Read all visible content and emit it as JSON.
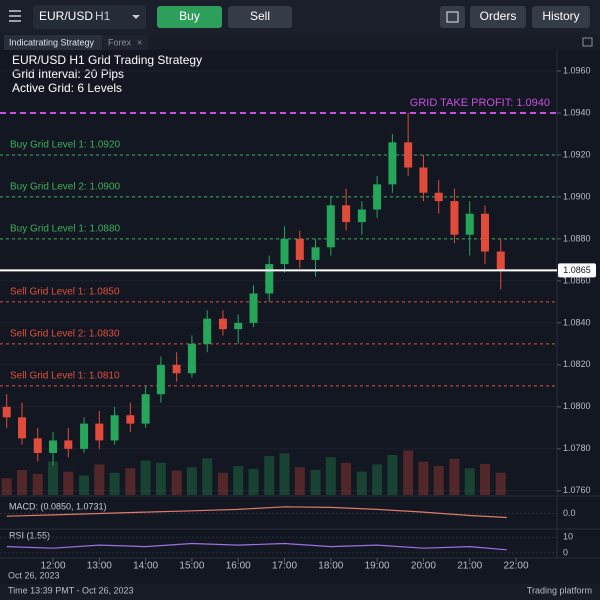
{
  "toolbar": {
    "symbol": "EUR/USD",
    "timeframe": "H1",
    "buy": "Buy",
    "sell": "Sell",
    "orders": "Orders",
    "history": "History"
  },
  "tabs": [
    "Indicatrating Strategy",
    "Forex"
  ],
  "chart": {
    "type": "candlestick",
    "info": [
      "EUR/USD  H1 Grid Trading Strategy",
      "Grid Interval: 20 Pips",
      "Active Grid: 6 Levels"
    ],
    "x": [
      11.0,
      11.33,
      11.67,
      12.0,
      12.33,
      12.67,
      13.0,
      13.33,
      13.67,
      14.0,
      14.33,
      14.67,
      15.0,
      15.33,
      15.67,
      16.0,
      16.33,
      16.67,
      17.0,
      17.33,
      17.67,
      18.0,
      18.33,
      18.67,
      19.0,
      19.33,
      19.67,
      20.0,
      20.33,
      20.67,
      21.0,
      21.33,
      21.67
    ],
    "open": [
      1.08,
      1.0795,
      1.0785,
      1.0778,
      1.0784,
      1.078,
      1.0792,
      1.0784,
      1.0796,
      1.0792,
      1.0806,
      1.082,
      1.0816,
      1.083,
      1.0842,
      1.0837,
      1.084,
      1.0854,
      1.0868,
      1.088,
      1.087,
      1.0876,
      1.0896,
      1.0888,
      1.0894,
      1.0906,
      1.0926,
      1.0914,
      1.0902,
      1.0898,
      1.0882,
      1.0892,
      1.0874
    ],
    "high": [
      1.0806,
      1.0802,
      1.079,
      1.0788,
      1.079,
      1.0795,
      1.0798,
      1.08,
      1.0802,
      1.081,
      1.0824,
      1.0826,
      1.0834,
      1.0846,
      1.0846,
      1.0844,
      1.0858,
      1.0872,
      1.0886,
      1.0884,
      1.088,
      1.09,
      1.0904,
      1.0898,
      1.091,
      1.093,
      1.094,
      1.092,
      1.0908,
      1.0904,
      1.0898,
      1.0896,
      1.088
    ],
    "low": [
      1.079,
      1.0782,
      1.0774,
      1.0772,
      1.0776,
      1.0778,
      1.078,
      1.0782,
      1.0788,
      1.079,
      1.0802,
      1.0812,
      1.0814,
      1.0826,
      1.0834,
      1.083,
      1.0838,
      1.085,
      1.0864,
      1.0866,
      1.0862,
      1.0872,
      1.0884,
      1.0882,
      1.089,
      1.0902,
      1.091,
      1.0898,
      1.0892,
      1.0878,
      1.0872,
      1.0868,
      1.0856
    ],
    "close": [
      1.0795,
      1.0785,
      1.0778,
      1.0784,
      1.078,
      1.0792,
      1.0784,
      1.0796,
      1.0792,
      1.0806,
      1.082,
      1.0816,
      1.083,
      1.0842,
      1.0837,
      1.084,
      1.0854,
      1.0868,
      1.088,
      1.087,
      1.0876,
      1.0896,
      1.0888,
      1.0894,
      1.0906,
      1.0926,
      1.0914,
      1.0902,
      1.0898,
      1.0882,
      1.0892,
      1.0874,
      1.0865
    ],
    "volume": [
      30,
      45,
      38,
      60,
      42,
      35,
      55,
      40,
      48,
      62,
      58,
      44,
      50,
      66,
      40,
      52,
      47,
      70,
      75,
      50,
      45,
      68,
      58,
      42,
      55,
      72,
      80,
      60,
      52,
      65,
      48,
      56,
      40
    ],
    "volume_ylim": [
      0,
      200
    ],
    "up_color": "#26a65b",
    "down_color": "#e04b3a",
    "xlim": [
      10.855,
      22.885
    ],
    "xticks": [
      {
        "value": 12,
        "label": "12:00"
      },
      {
        "value": 13,
        "label": "13:00"
      },
      {
        "value": 14,
        "label": "14:00"
      },
      {
        "value": 15,
        "label": "15:00"
      },
      {
        "value": 16,
        "label": "16:00"
      },
      {
        "value": 17,
        "label": "17:00"
      },
      {
        "value": 18,
        "label": "18:00"
      },
      {
        "value": 19,
        "label": "19:00"
      },
      {
        "value": 20,
        "label": "20:00"
      },
      {
        "value": 21,
        "label": "21:00"
      },
      {
        "value": 22,
        "label": "22:00"
      }
    ],
    "date": "Oct 26, 2023",
    "ylim": [
      1.0758,
      1.097
    ],
    "yticks": [
      {
        "value": 1.096,
        "label": "1.0960"
      },
      {
        "value": 1.094,
        "label": "1.0940"
      },
      {
        "value": 1.092,
        "label": "1.0920"
      },
      {
        "value": 1.09,
        "label": "1.0900"
      },
      {
        "value": 1.088,
        "label": "1.0880"
      },
      {
        "value": 1.086,
        "label": "1.0860"
      },
      {
        "value": 1.084,
        "label": "1.0840"
      },
      {
        "value": 1.082,
        "label": "1.0820"
      },
      {
        "value": 1.08,
        "label": "1.0800"
      },
      {
        "value": 1.078,
        "label": "1.0780"
      },
      {
        "value": 1.076,
        "label": "1.0760"
      }
    ],
    "levels": [
      {
        "label": "GRID TAKE PROFIT: 1.0940",
        "value": 1.094,
        "color": "#c84fe0"
      },
      {
        "label": "Buy Grid Level 1: 1.0920",
        "value": 1.092,
        "color": "#3fae5a"
      },
      {
        "label": "Buy Grid Level 2: 1.0900",
        "value": 1.09,
        "color": "#3fae5a"
      },
      {
        "label": "Buy Grid Level 1: 1.0880",
        "value": 1.088,
        "color": "#3fae5a"
      },
      {
        "label": "Sell Grid Level 1: 1.0850",
        "value": 1.085,
        "color": "#e0503c"
      },
      {
        "label": "Sell Grid Level 2: 1.0830",
        "value": 1.083,
        "color": "#e0503c"
      },
      {
        "label": "Sell Grid Level 1: 1.0810",
        "value": 1.081,
        "color": "#e0503c"
      }
    ],
    "current_price": {
      "value": 1.0865,
      "label": "1.0865"
    }
  },
  "macd": {
    "label": "MACD: (0.0850, 1.0731)",
    "ylim": [
      -1,
      1
    ],
    "yticks": [
      {
        "value": 0,
        "label": "0.0"
      }
    ],
    "x": [
      11,
      12,
      13,
      14,
      15,
      16,
      17,
      18,
      19,
      20,
      21,
      21.8
    ],
    "values": [
      -0.2,
      -0.1,
      0.0,
      0.1,
      0.2,
      0.3,
      0.5,
      0.45,
      0.3,
      0.1,
      -0.15,
      -0.3
    ]
  },
  "rsi": {
    "label": "RSI (1.55)",
    "ylim": [
      -2,
      14
    ],
    "yticks": [
      10,
      0
    ],
    "x": [
      11,
      12,
      13,
      14,
      15,
      16,
      17,
      18,
      19,
      20,
      21,
      21.8
    ],
    "values": [
      4,
      3,
      5,
      4,
      6,
      5,
      6,
      4,
      5,
      3,
      4,
      2
    ]
  },
  "footer": {
    "time": "Time 13:39 PMT - Oct 26, 2023",
    "brand": "Trading platform"
  }
}
